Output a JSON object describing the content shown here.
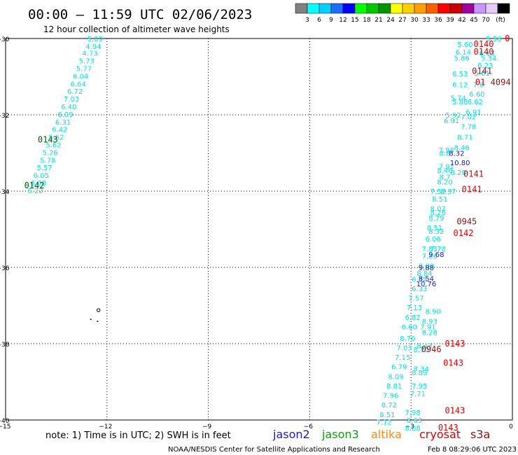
{
  "header": {
    "title": "00:00 – 11:59 UTC 02/06/2023",
    "subtitle": "12 hour collection of altimeter wave heights"
  },
  "legend": {
    "colors": [
      "#808080",
      "#00ffff",
      "#00d0ff",
      "#1a6fff",
      "#0000ff",
      "#00ff00",
      "#00c800",
      "#009600",
      "#ffff00",
      "#ffd000",
      "#ffa000",
      "#ff6000",
      "#ff0000",
      "#c80000",
      "#a000a0",
      "#c896ff",
      "#e8c8ff",
      "#000000"
    ],
    "labels": [
      "3",
      "6",
      "9",
      "12",
      "15",
      "18",
      "21",
      "24",
      "27",
      "30",
      "33",
      "36",
      "39",
      "42",
      "45",
      "70"
    ],
    "unit": "(ft)"
  },
  "footer": {
    "note": "note:  1) Time is in UTC; 2) SWH is in feet",
    "satellites": [
      {
        "name": "jason2",
        "color": "#1a1ad0"
      },
      {
        "name": "jason3",
        "color": "#10a010"
      },
      {
        "name": "altika",
        "color": "#ff8c00"
      },
      {
        "name": "cryosat",
        "color": "#e00000"
      },
      {
        "name": "s3a",
        "color": "#9a1010"
      }
    ],
    "credit": "NOAA/NESDIS Center for Satellite Applications and Research",
    "timestamp": "Feb  8 08:29:06 UTC 2023"
  },
  "chart_data": {
    "type": "scatter",
    "xlim": [
      -15,
      0
    ],
    "ylim": [
      -40,
      -30
    ],
    "x_ticks": [
      -15,
      -12,
      -9,
      -6,
      -3,
      0
    ],
    "y_ticks": [
      -30,
      -32,
      -34,
      -36,
      -38,
      -40
    ],
    "x_tick_labels": [
      "−15",
      "−12",
      "−9",
      "−6",
      "−3",
      "0"
    ],
    "y_tick_labels": [
      "−30",
      "−32",
      "−34",
      "−36",
      "−38",
      "−40"
    ],
    "grid": true,
    "island_points": [
      [
        -12.25,
        -37.12
      ],
      [
        -12.5,
        -37.35
      ],
      [
        -12.3,
        -37.4
      ]
    ],
    "series": [
      {
        "name": "jason3",
        "color": "#00e6e6",
        "points": [
          {
            "x": -12.35,
            "y": -30.0,
            "v": "5.09"
          },
          {
            "x": -12.4,
            "y": -30.2,
            "v": "4.94"
          },
          {
            "x": -12.5,
            "y": -30.38,
            "v": "4.73"
          },
          {
            "x": -12.6,
            "y": -30.58,
            "v": "5.73"
          },
          {
            "x": -12.68,
            "y": -30.78,
            "v": "5.77"
          },
          {
            "x": -12.78,
            "y": -30.98,
            "v": "6.04"
          },
          {
            "x": -12.85,
            "y": -31.18,
            "v": "6.64"
          },
          {
            "x": -12.95,
            "y": -31.38,
            "v": "6.72"
          },
          {
            "x": -13.05,
            "y": -31.58,
            "v": "7.03"
          },
          {
            "x": -13.13,
            "y": -31.78,
            "v": "6.40"
          },
          {
            "x": -13.23,
            "y": -31.98,
            "v": "6.09"
          },
          {
            "x": -13.3,
            "y": -32.18,
            "v": "6.31"
          },
          {
            "x": -13.4,
            "y": -32.38,
            "v": "6.42"
          },
          {
            "x": -13.5,
            "y": -32.58,
            "v": "5.62"
          },
          {
            "x": -13.58,
            "y": -32.78,
            "v": "5.62"
          },
          {
            "x": -13.68,
            "y": -32.98,
            "v": "5.26"
          },
          {
            "x": -13.75,
            "y": -33.18,
            "v": "5.78"
          },
          {
            "x": -13.85,
            "y": -33.38,
            "v": "5.57"
          },
          {
            "x": -13.95,
            "y": -33.58,
            "v": "6.05"
          },
          {
            "x": -14.03,
            "y": -33.78,
            "v": "6.08"
          },
          {
            "x": -14.12,
            "y": -33.98,
            "v": "6.22"
          },
          {
            "x": -0.55,
            "y": -30.0,
            "v": "5.56"
          },
          {
            "x": -1.4,
            "y": -30.15,
            "v": "5.60"
          },
          {
            "x": -1.45,
            "y": -30.35,
            "v": "6.14"
          },
          {
            "x": -0.75,
            "y": -30.38,
            "v": "6.13"
          },
          {
            "x": -1.5,
            "y": -30.5,
            "v": "5.86"
          },
          {
            "x": -0.7,
            "y": -30.5,
            "v": "5.34"
          },
          {
            "x": -0.8,
            "y": -30.7,
            "v": "6.23"
          },
          {
            "x": -1.55,
            "y": -30.92,
            "v": "6.53"
          },
          {
            "x": -0.9,
            "y": -30.9,
            "v": "5.61"
          },
          {
            "x": -1.55,
            "y": -31.2,
            "v": "6.12"
          },
          {
            "x": -1.0,
            "y": -31.2,
            "v": "7.0"
          },
          {
            "x": -1.05,
            "y": -31.45,
            "v": "6.60"
          },
          {
            "x": -1.6,
            "y": -31.55,
            "v": "5.74"
          },
          {
            "x": -1.55,
            "y": -31.65,
            "v": "5.88"
          },
          {
            "x": -1.1,
            "y": -31.65,
            "v": "6.62"
          },
          {
            "x": -1.15,
            "y": -31.92,
            "v": "6.91"
          },
          {
            "x": -1.75,
            "y": -32.0,
            "v": "5.92"
          },
          {
            "x": -1.3,
            "y": -32.05,
            "v": "7.02"
          },
          {
            "x": -1.8,
            "y": -32.15,
            "v": "6.91"
          },
          {
            "x": -1.3,
            "y": -32.3,
            "v": "7.78"
          },
          {
            "x": -1.4,
            "y": -32.58,
            "v": "8.71"
          },
          {
            "x": -1.5,
            "y": -32.85,
            "v": "8.46"
          },
          {
            "x": -1.95,
            "y": -32.92,
            "v": "7.98"
          },
          {
            "x": -2.0,
            "y": -33.0,
            "v": "8.8"
          },
          {
            "x": -1.95,
            "y": -33.35,
            "v": "7.91"
          },
          {
            "x": -2.0,
            "y": -33.45,
            "v": "8.46"
          },
          {
            "x": -1.6,
            "y": -33.5,
            "v": "8.26"
          },
          {
            "x": -2.0,
            "y": -33.62,
            "v": "8.7"
          },
          {
            "x": -2.0,
            "y": -33.75,
            "v": "8.20"
          },
          {
            "x": -2.2,
            "y": -34.0,
            "v": "7.57"
          },
          {
            "x": -1.9,
            "y": -34.0,
            "v": "8.37"
          },
          {
            "x": -2.15,
            "y": -34.2,
            "v": "8.51"
          },
          {
            "x": -2.2,
            "y": -34.45,
            "v": "8.02"
          },
          {
            "x": -2.2,
            "y": -34.55,
            "v": "8.26"
          },
          {
            "x": -2.25,
            "y": -34.7,
            "v": "8.79"
          },
          {
            "x": -2.3,
            "y": -34.95,
            "v": "8.51"
          },
          {
            "x": -2.25,
            "y": -35.05,
            "v": "8.32"
          },
          {
            "x": -2.35,
            "y": -35.25,
            "v": "6.06"
          },
          {
            "x": -2.45,
            "y": -35.5,
            "v": "7.83"
          },
          {
            "x": -2.2,
            "y": -35.5,
            "v": "7.78"
          },
          {
            "x": -2.45,
            "y": -35.7,
            "v": "7.85"
          },
          {
            "x": -2.55,
            "y": -35.95,
            "v": "8.08"
          },
          {
            "x": -2.6,
            "y": -36.15,
            "v": "8.84"
          },
          {
            "x": -2.75,
            "y": -36.3,
            "v": "6.35"
          },
          {
            "x": -2.75,
            "y": -36.55,
            "v": "6.33"
          },
          {
            "x": -2.85,
            "y": -36.8,
            "v": "7.57"
          },
          {
            "x": -2.9,
            "y": -37.05,
            "v": "7.13"
          },
          {
            "x": -2.35,
            "y": -37.15,
            "v": "8.90"
          },
          {
            "x": -2.95,
            "y": -37.3,
            "v": "6.82"
          },
          {
            "x": -2.45,
            "y": -37.4,
            "v": "8.93"
          },
          {
            "x": -3.05,
            "y": -37.55,
            "v": "6.60"
          },
          {
            "x": -2.5,
            "y": -37.55,
            "v": "7.91"
          },
          {
            "x": -2.45,
            "y": -37.7,
            "v": "8.28"
          },
          {
            "x": -3.1,
            "y": -37.85,
            "v": "8.70"
          },
          {
            "x": -3.2,
            "y": -38.1,
            "v": "7.03"
          },
          {
            "x": -2.6,
            "y": -38.05,
            "v": "8.43"
          },
          {
            "x": -2.7,
            "y": -38.15,
            "v": "8.70"
          },
          {
            "x": -3.25,
            "y": -38.35,
            "v": "7.15"
          },
          {
            "x": -3.35,
            "y": -38.6,
            "v": "6.79"
          },
          {
            "x": -2.7,
            "y": -38.65,
            "v": "8.34"
          },
          {
            "x": -2.75,
            "y": -38.75,
            "v": "8.89"
          },
          {
            "x": -3.45,
            "y": -38.85,
            "v": "8.09"
          },
          {
            "x": -3.5,
            "y": -39.1,
            "v": "8.81"
          },
          {
            "x": -2.75,
            "y": -39.1,
            "v": "7.95"
          },
          {
            "x": -2.8,
            "y": -39.3,
            "v": "7.71"
          },
          {
            "x": -3.6,
            "y": -39.35,
            "v": "7.96"
          },
          {
            "x": -3.65,
            "y": -39.6,
            "v": "8.72"
          },
          {
            "x": -2.95,
            "y": -39.8,
            "v": "7.98"
          },
          {
            "x": -3.7,
            "y": -39.85,
            "v": "8.51"
          },
          {
            "x": -2.9,
            "y": -40.0,
            "v": "8.63"
          },
          {
            "x": -3.8,
            "y": -40.05,
            "v": "7.12"
          },
          {
            "x": -2.95,
            "y": -40.2,
            "v": "8.88"
          }
        ]
      },
      {
        "name": "jason2",
        "color": "#1a1ad0",
        "points": [
          {
            "x": -1.65,
            "y": -33.0,
            "v": "8.32"
          },
          {
            "x": -1.55,
            "y": -33.25,
            "v": "10.80"
          },
          {
            "x": -2.25,
            "y": -35.65,
            "v": "9.68"
          },
          {
            "x": -2.55,
            "y": -36.0,
            "v": "9.88"
          },
          {
            "x": -2.55,
            "y": -36.28,
            "v": "8.54"
          },
          {
            "x": -2.55,
            "y": -36.42,
            "v": "10.76"
          }
        ]
      },
      {
        "name": "jason3-times",
        "color": "#006400",
        "points": [
          {
            "x": -13.75,
            "y": -32.65,
            "v": "0143"
          },
          {
            "x": -14.15,
            "y": -33.85,
            "v": "0142"
          }
        ]
      },
      {
        "name": "cryosat-times",
        "color": "#e00000",
        "points": [
          {
            "x": -0.15,
            "y": -30.0,
            "v": "0"
          },
          {
            "x": -0.85,
            "y": -30.15,
            "v": "0140"
          },
          {
            "x": -0.85,
            "y": -30.35,
            "v": "0140"
          },
          {
            "x": -0.9,
            "y": -30.85,
            "v": "0141"
          },
          {
            "x": -0.95,
            "y": -31.15,
            "v": "01"
          },
          {
            "x": -1.15,
            "y": -33.55,
            "v": "0141"
          },
          {
            "x": -1.2,
            "y": -33.95,
            "v": "0141"
          },
          {
            "x": -1.45,
            "y": -35.1,
            "v": "0142"
          },
          {
            "x": -1.7,
            "y": -38.0,
            "v": "0143"
          },
          {
            "x": -1.75,
            "y": -38.5,
            "v": "0143"
          },
          {
            "x": -1.7,
            "y": -39.75,
            "v": "0143"
          },
          {
            "x": -1.9,
            "y": -40.2,
            "v": "0143"
          }
        ]
      },
      {
        "name": "s3a-times",
        "color": "#9a1010",
        "points": [
          {
            "x": -0.35,
            "y": -31.15,
            "v": "4094"
          },
          {
            "x": -1.35,
            "y": -34.8,
            "v": "0945"
          },
          {
            "x": -2.4,
            "y": -38.15,
            "v": "0946"
          }
        ]
      }
    ]
  }
}
